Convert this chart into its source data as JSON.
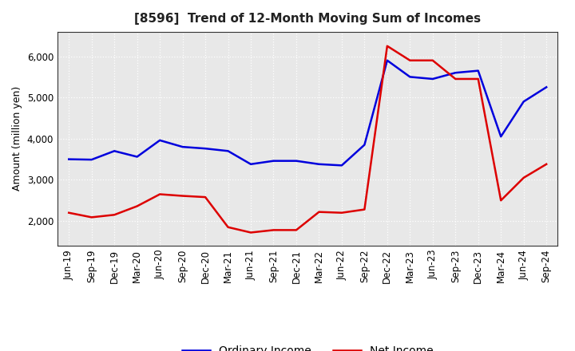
{
  "title": "[8596]  Trend of 12-Month Moving Sum of Incomes",
  "ylabel": "Amount (million yen)",
  "background_color": "#ffffff",
  "plot_bg_color": "#e8e8e8",
  "grid_color": "#ffffff",
  "labels": [
    "Jun-19",
    "Sep-19",
    "Dec-19",
    "Mar-20",
    "Jun-20",
    "Sep-20",
    "Dec-20",
    "Mar-21",
    "Jun-21",
    "Sep-21",
    "Dec-21",
    "Mar-22",
    "Jun-22",
    "Sep-22",
    "Dec-22",
    "Mar-23",
    "Jun-23",
    "Sep-23",
    "Dec-23",
    "Mar-24",
    "Jun-24",
    "Sep-24"
  ],
  "ordinary_income": [
    3500,
    3490,
    3700,
    3560,
    3960,
    3800,
    3760,
    3700,
    3380,
    3460,
    3460,
    3380,
    3350,
    3850,
    5900,
    5500,
    5450,
    5600,
    5650,
    4050,
    4900,
    5250
  ],
  "net_income": [
    2200,
    2090,
    2150,
    2360,
    2650,
    2610,
    2580,
    1850,
    1720,
    1780,
    1780,
    2220,
    2200,
    2280,
    6250,
    5900,
    5900,
    5450,
    5450,
    2500,
    3050,
    3380
  ],
  "ordinary_color": "#0000dd",
  "net_color": "#dd0000",
  "ylim_min": 1400,
  "ylim_max": 6600,
  "yticks": [
    2000,
    3000,
    4000,
    5000,
    6000
  ],
  "line_width": 1.8,
  "title_fontsize": 11,
  "legend_fontsize": 10,
  "tick_fontsize": 8.5,
  "ylabel_fontsize": 9
}
